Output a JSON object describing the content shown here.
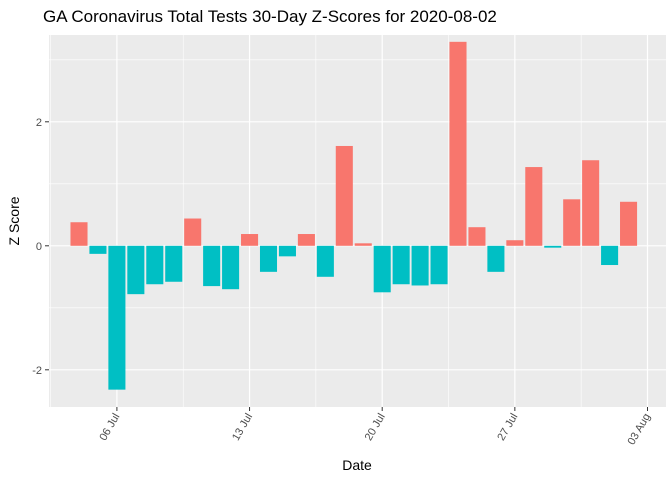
{
  "chart_data": {
    "type": "bar",
    "title": "GA Coronavirus Total Tests 30-Day Z-Scores for 2020-08-02",
    "xlabel": "Date",
    "ylabel": "Z Score",
    "x_ticks": [
      "06 Jul",
      "13 Jul",
      "20 Jul",
      "27 Jul",
      "03 Aug"
    ],
    "y_ticks": [
      "-2",
      "0",
      "2"
    ],
    "ylim": [
      -2.6,
      3.4
    ],
    "grid": true,
    "legend": "none",
    "colors": {
      "positive": "#F8766D",
      "negative": "#00BFC4",
      "panel": "#EBEBEB",
      "grid": "#FFFFFF"
    },
    "x": [
      "2020-07-04",
      "2020-07-05",
      "2020-07-06",
      "2020-07-07",
      "2020-07-08",
      "2020-07-09",
      "2020-07-10",
      "2020-07-11",
      "2020-07-12",
      "2020-07-13",
      "2020-07-14",
      "2020-07-15",
      "2020-07-16",
      "2020-07-17",
      "2020-07-18",
      "2020-07-19",
      "2020-07-20",
      "2020-07-21",
      "2020-07-22",
      "2020-07-23",
      "2020-07-24",
      "2020-07-25",
      "2020-07-26",
      "2020-07-27",
      "2020-07-28",
      "2020-07-29",
      "2020-07-30",
      "2020-07-31",
      "2020-08-01",
      "2020-08-02"
    ],
    "values": [
      0.38,
      -0.13,
      -2.32,
      -0.78,
      -0.62,
      -0.58,
      0.44,
      -0.65,
      -0.7,
      0.19,
      -0.42,
      -0.17,
      0.19,
      -0.5,
      1.61,
      0.04,
      -0.75,
      -0.62,
      -0.64,
      -0.62,
      3.29,
      0.3,
      -0.42,
      0.09,
      1.27,
      -0.03,
      0.75,
      1.38,
      -0.31,
      0.71
    ]
  }
}
